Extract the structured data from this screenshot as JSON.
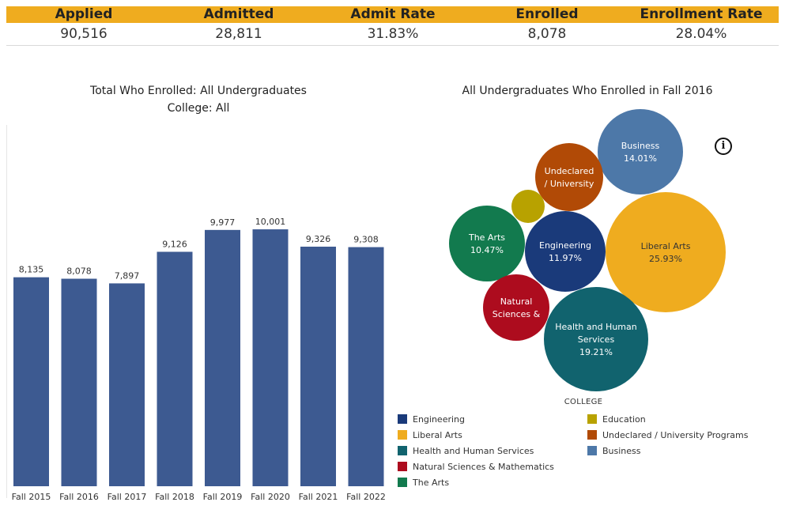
{
  "kpis": [
    {
      "label": "Applied",
      "value": "90,516"
    },
    {
      "label": "Admitted",
      "value": "28,811"
    },
    {
      "label": "Admit Rate",
      "value": "31.83%"
    },
    {
      "label": "Enrolled",
      "value": "8,078"
    },
    {
      "label": "Enrollment Rate",
      "value": "28.04%"
    }
  ],
  "bar_chart": {
    "title_line1": "Total Who Enrolled: All Undergraduates",
    "title_line2": "College: All"
  },
  "bubble_chart": {
    "title": "All Undergraduates Who Enrolled  in Fall 2016"
  },
  "legend": {
    "title": "COLLEGE",
    "items": [
      {
        "label": "Engineering",
        "color": "#1a3a7a"
      },
      {
        "label": "Education",
        "color": "#b8a200"
      },
      {
        "label": "Liberal Arts",
        "color": "#efac1f"
      },
      {
        "label": "Undeclared / University Programs",
        "color": "#b14a06"
      },
      {
        "label": "Health and Human Services",
        "color": "#11636e"
      },
      {
        "label": "Business",
        "color": "#4d78a8"
      },
      {
        "label": "Natural Sciences & Mathematics",
        "color": "#ad0c1e"
      },
      {
        "label": "The Arts",
        "color": "#127a4e"
      }
    ]
  },
  "info_icon": "info-icon",
  "chart_data": [
    {
      "type": "bar",
      "title": "Total Who Enrolled: All Undergraduates",
      "subtitle": "College: All",
      "categories": [
        "Fall 2015",
        "Fall 2016",
        "Fall 2017",
        "Fall 2018",
        "Fall 2019",
        "Fall 2020",
        "Fall 2021",
        "Fall 2022"
      ],
      "values": [
        8135,
        8078,
        7897,
        9126,
        9977,
        10001,
        9326,
        9308
      ],
      "value_labels": [
        "8,135",
        "8,078",
        "7,897",
        "9,126",
        "9,977",
        "10,001",
        "9,326",
        "9,308"
      ],
      "bar_color": "#3d5a91",
      "ylim": [
        0,
        13850
      ],
      "grid": false
    },
    {
      "type": "bubble",
      "title": "All Undergraduates Who Enrolled  in Fall 2016",
      "legend_title": "COLLEGE",
      "series": [
        {
          "name": "Liberal Arts",
          "value": 25.93,
          "label": "Liberal Arts",
          "percent": "25.93%",
          "color": "#efac1f"
        },
        {
          "name": "Health and Human Services",
          "value": 19.21,
          "label": "Health and Human Services",
          "percent": "19.21%",
          "color": "#11636e"
        },
        {
          "name": "Business",
          "value": 14.01,
          "label": "Business",
          "percent": "14.01%",
          "color": "#4d78a8"
        },
        {
          "name": "Engineering",
          "value": 11.97,
          "label": "Engineering",
          "percent": "11.97%",
          "color": "#1a3a7a"
        },
        {
          "name": "The Arts",
          "value": 10.47,
          "label": "The Arts",
          "percent": "10.47%",
          "color": "#127a4e"
        },
        {
          "name": "Undeclared / University Programs",
          "value": 8.9,
          "label": "Undeclared / University",
          "percent": "",
          "color": "#b14a06"
        },
        {
          "name": "Natural Sciences & Mathematics",
          "value": 7.6,
          "label": "Natural Sciences &",
          "percent": "",
          "color": "#ad0c1e"
        },
        {
          "name": "Education",
          "value": 1.9,
          "label": "",
          "percent": "",
          "color": "#b8a200"
        }
      ]
    }
  ]
}
